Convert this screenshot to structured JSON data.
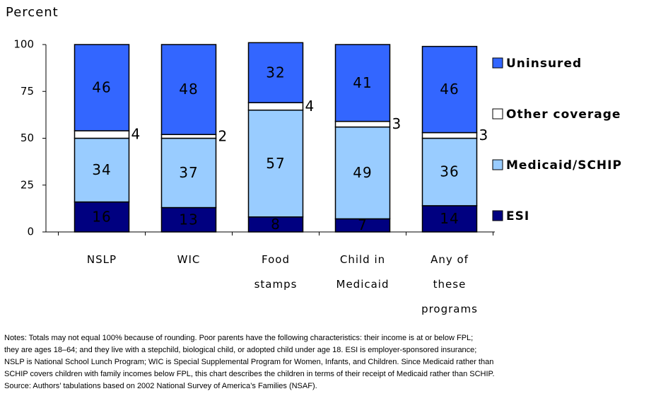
{
  "chart_data": {
    "type": "stacked_bar",
    "y_label": "Percent",
    "categories": [
      "NSLP",
      "WIC",
      "Food\nstamps",
      "Child in\nMedicaid",
      "Any of\nthese\nprograms"
    ],
    "series": [
      {
        "name": "ESI",
        "color": "#000080",
        "label_color": "#ffffff",
        "values": [
          16,
          13,
          8,
          7,
          14
        ]
      },
      {
        "name": "Medicaid/SCHIP",
        "color": "#99ccff",
        "label_color": "#000000",
        "values": [
          34,
          37,
          57,
          49,
          36
        ]
      },
      {
        "name": "Other coverage",
        "color": "#ffffff",
        "label_color": "#000000",
        "values": [
          4,
          2,
          4,
          3,
          3
        ]
      },
      {
        "name": "Uninsured",
        "color": "#3366ff",
        "label_color": "#ffffff",
        "values": [
          46,
          48,
          32,
          41,
          46
        ]
      }
    ],
    "ylim": [
      0,
      100
    ],
    "yticks": [
      0,
      25,
      50,
      75,
      100
    ],
    "notes": [
      "Notes: Totals may not equal 100% because of rounding. Poor parents have the following characteristics: their income is at or below FPL;",
      "they are ages 18–64; and they live with a stepchild, biological child, or adopted child under age 18. ESI is employer-sponsored insurance;",
      "NSLP is National School Lunch Program; WIC is Special Supplemental Program for Women, Infants, and Children. Since Medicaid rather than",
      "SCHIP covers children with family incomes below FPL, this chart describes the children in terms of their receipt of Medicaid rather than SCHIP.",
      "Source: Authors’ tabulations based on 2002 National Survey of America’s Families (NSAF)."
    ]
  }
}
